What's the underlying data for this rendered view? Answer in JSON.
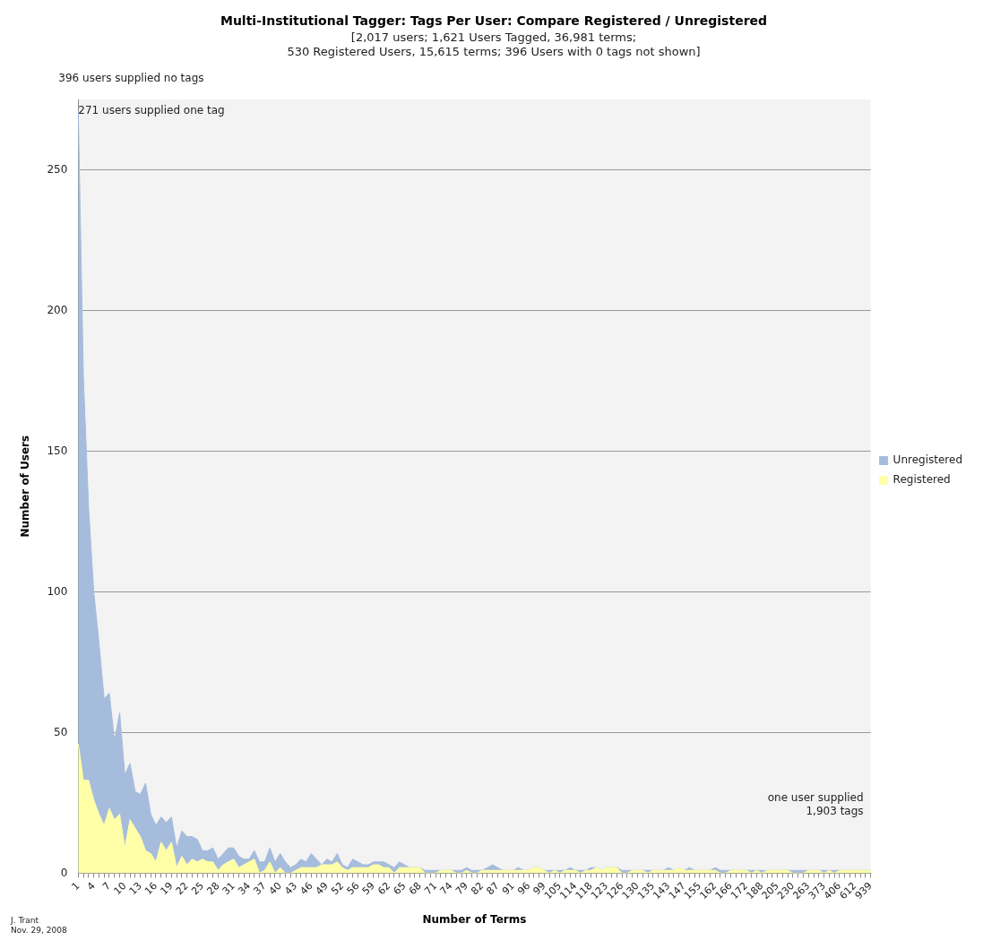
{
  "chart_data": {
    "type": "area",
    "stacked": true,
    "title": "Multi-Institutional Tagger: Tags Per User: Compare Registered / Unregistered",
    "subtitle": "[2,017 users; 1,621 Users Tagged, 36,981 terms;\n530 Registered Users, 15,615 terms; 396 Users with 0 tags not shown]",
    "xlabel": "Number of Terms",
    "ylabel": "Number of Users",
    "categories": [
      "1",
      null,
      null,
      "4",
      null,
      null,
      "7",
      null,
      null,
      "10",
      null,
      null,
      "13",
      null,
      null,
      "16",
      null,
      null,
      "19",
      null,
      null,
      "22",
      null,
      null,
      "25",
      null,
      null,
      "28",
      null,
      null,
      "31",
      null,
      null,
      "34",
      null,
      null,
      "37",
      null,
      null,
      "40",
      null,
      null,
      "43",
      null,
      null,
      "46",
      null,
      null,
      "49",
      null,
      null,
      "52",
      null,
      null,
      "56",
      null,
      null,
      "59",
      null,
      null,
      "62",
      null,
      null,
      "65",
      null,
      null,
      "68",
      null,
      null,
      "71",
      null,
      null,
      "74",
      null,
      null,
      "79",
      null,
      null,
      "82",
      null,
      null,
      "87",
      null,
      null,
      "91",
      null,
      null,
      "96",
      null,
      null,
      "99",
      null,
      null,
      "105",
      null,
      null,
      "114",
      null,
      null,
      "118",
      null,
      null,
      "123",
      null,
      null,
      "126",
      null,
      null,
      "130",
      null,
      null,
      "135",
      null,
      null,
      "143",
      null,
      null,
      "147",
      null,
      null,
      "155",
      null,
      null,
      "162",
      null,
      null,
      "166",
      null,
      null,
      "172",
      null,
      null,
      "188",
      null,
      null,
      "205",
      null,
      null,
      "230",
      null,
      null,
      "263",
      null,
      null,
      "373",
      null,
      null,
      "406",
      null,
      null,
      "612",
      null,
      null,
      "939"
    ],
    "series": [
      {
        "name": "Registered",
        "color": "#ffffa8",
        "values": [
          46,
          33,
          33,
          26,
          21,
          17,
          23,
          19,
          21,
          9,
          19,
          16,
          13,
          8,
          7,
          4,
          11,
          8,
          11,
          2,
          6,
          3,
          5,
          4,
          5,
          4,
          4,
          1,
          3,
          4,
          5,
          2,
          3,
          4,
          5,
          0,
          1,
          4,
          0,
          2,
          0,
          0,
          1,
          2,
          2,
          2,
          2,
          3,
          3,
          3,
          4,
          2,
          1,
          2,
          2,
          2,
          2,
          3,
          3,
          2,
          2,
          0,
          2,
          2,
          2,
          2,
          2,
          0,
          0,
          0,
          1,
          1,
          1,
          0,
          0,
          1,
          0,
          0,
          1,
          1,
          1,
          1,
          1,
          1,
          1,
          1,
          1,
          1,
          2,
          2,
          1,
          0,
          1,
          0,
          1,
          1,
          1,
          0,
          1,
          1,
          2,
          1,
          2,
          2,
          2,
          0,
          0,
          1,
          1,
          1,
          0,
          1,
          1,
          1,
          1,
          1,
          2,
          1,
          1,
          1,
          1,
          1,
          1,
          1,
          0,
          0,
          1,
          1,
          1,
          1,
          0,
          1,
          0,
          1,
          1,
          1,
          1,
          1,
          0,
          0,
          0,
          1,
          1,
          1,
          0,
          1,
          0,
          1,
          1,
          1,
          1,
          1,
          1,
          1
        ]
      },
      {
        "name": "Unregistered",
        "color": "#a6bcdc",
        "values": [
          225,
          143,
          97,
          74,
          61,
          45,
          41,
          28,
          36,
          26,
          20,
          13,
          15,
          24,
          14,
          13,
          9,
          10,
          9,
          7,
          9,
          10,
          8,
          8,
          3,
          4,
          5,
          4,
          4,
          5,
          4,
          4,
          2,
          1,
          3,
          4,
          3,
          5,
          4,
          5,
          4,
          2,
          2,
          3,
          2,
          5,
          3,
          0,
          2,
          1,
          3,
          1,
          1,
          3,
          2,
          1,
          1,
          1,
          1,
          2,
          1,
          2,
          2,
          1,
          0,
          0,
          0,
          1,
          1,
          1,
          0,
          0,
          0,
          1,
          1,
          1,
          1,
          1,
          0,
          1,
          2,
          1,
          0,
          0,
          0,
          1,
          0,
          0,
          0,
          0,
          0,
          1,
          0,
          1,
          0,
          1,
          0,
          1,
          0,
          1,
          0,
          0,
          0,
          0,
          0,
          1,
          1,
          0,
          0,
          0,
          1,
          0,
          0,
          0,
          1,
          0,
          0,
          0,
          1,
          0,
          0,
          0,
          0,
          1,
          1,
          1,
          0,
          0,
          0,
          0,
          1,
          0,
          1,
          0,
          0,
          0,
          0,
          0,
          1,
          1,
          1,
          0,
          0,
          0,
          1,
          0,
          1,
          0,
          0,
          0,
          0,
          0,
          0,
          0
        ]
      }
    ],
    "ylim": [
      0,
      275
    ],
    "yticks": [
      0,
      50,
      100,
      150,
      200,
      250
    ],
    "grid": "y",
    "legend": "right",
    "annotations": [
      "396 users supplied no tags",
      {
        "text": "271 users supplied one tag",
        "x": "1",
        "y": 271
      },
      "one user supplied\n1,903 tags",
      "J. Trant\nNov. 29, 2008"
    ]
  }
}
